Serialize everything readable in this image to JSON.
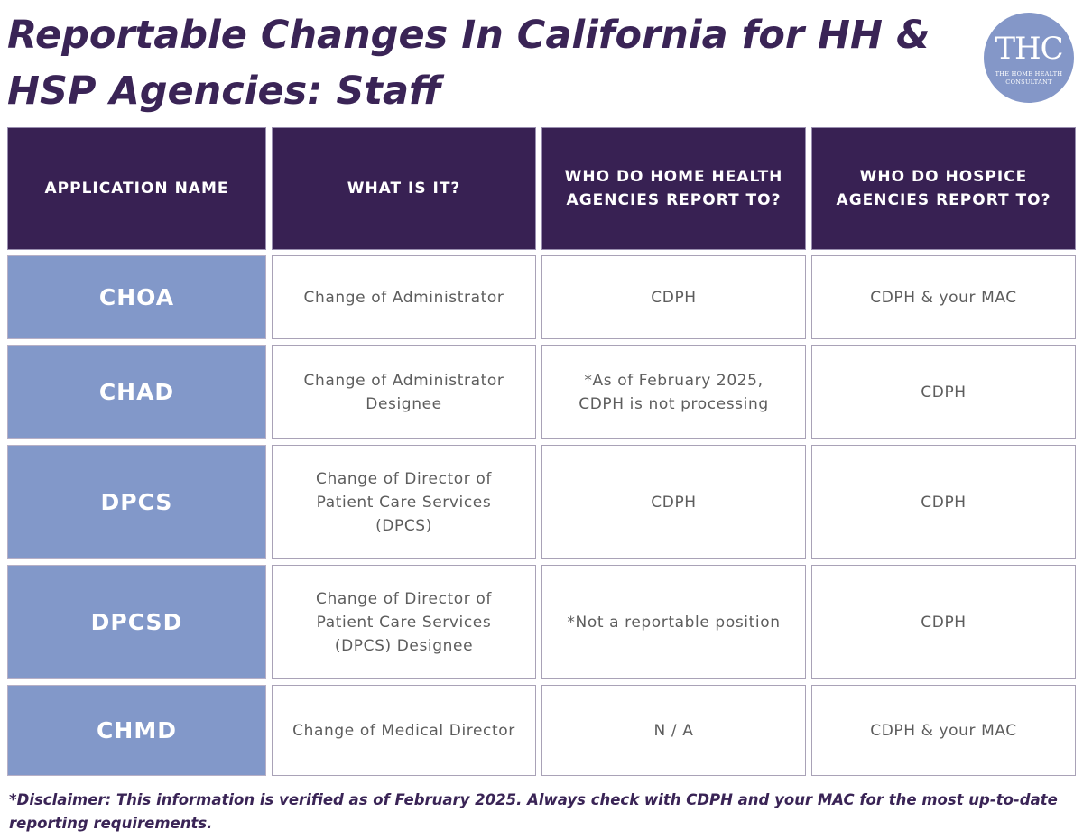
{
  "title": "Reportable Changes In California for HH & HSP Agencies: Staff",
  "logo": {
    "mark": "THC",
    "subtitle": "The Home Health Consultant"
  },
  "table": {
    "headers": [
      "APPLICATION NAME",
      "WHAT IS IT?",
      "WHO DO HOME HEALTH AGENCIES REPORT TO?",
      "WHO DO HOSPICE AGENCIES REPORT TO?"
    ],
    "rows": [
      {
        "application": "CHOA",
        "what": "Change of Administrator",
        "home_health": "CDPH",
        "hospice": "CDPH & your MAC"
      },
      {
        "application": "CHAD",
        "what": "Change of Administrator Designee",
        "home_health": "*As of February 2025, CDPH is not processing",
        "hospice": "CDPH"
      },
      {
        "application": "DPCS",
        "what": "Change of Director of Patient Care Services (DPCS)",
        "home_health": "CDPH",
        "hospice": "CDPH"
      },
      {
        "application": "DPCSD",
        "what": "Change of Director of Patient Care Services (DPCS) Designee",
        "home_health": "*Not a reportable position",
        "hospice": "CDPH"
      },
      {
        "application": "CHMD",
        "what": "Change of Medical Director",
        "home_health": "N / A",
        "hospice": "CDPH & your MAC"
      }
    ]
  },
  "disclaimer": "*Disclaimer: This information is verified as of February 2025. Always check with CDPH and your MAC for the most up-to-date reporting requirements.",
  "colors": {
    "title": "#3a2456",
    "header_bg": "#382153",
    "app_cell_bg": "#8298c9",
    "logo_bg": "#8497c8",
    "body_text": "#5d5d5d"
  }
}
